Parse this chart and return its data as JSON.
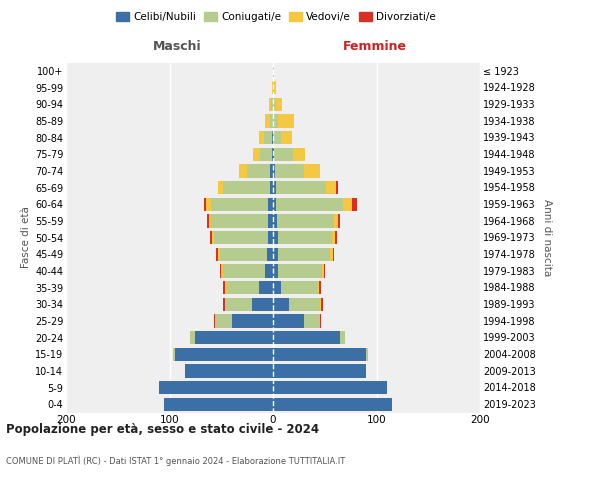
{
  "age_groups": [
    "0-4",
    "5-9",
    "10-14",
    "15-19",
    "20-24",
    "25-29",
    "30-34",
    "35-39",
    "40-44",
    "45-49",
    "50-54",
    "55-59",
    "60-64",
    "65-69",
    "70-74",
    "75-79",
    "80-84",
    "85-89",
    "90-94",
    "95-99",
    "100+"
  ],
  "birth_years": [
    "2019-2023",
    "2014-2018",
    "2009-2013",
    "2004-2008",
    "1999-2003",
    "1994-1998",
    "1989-1993",
    "1984-1988",
    "1979-1983",
    "1974-1978",
    "1969-1973",
    "1964-1968",
    "1959-1963",
    "1954-1958",
    "1949-1953",
    "1944-1948",
    "1939-1943",
    "1934-1938",
    "1929-1933",
    "1924-1928",
    "≤ 1923"
  ],
  "colors": {
    "celibi": "#3c6fa5",
    "coniugati": "#b5cc8e",
    "vedovi": "#f5c842",
    "divorziati": "#d93025"
  },
  "maschi": {
    "celibi": [
      105,
      110,
      85,
      95,
      75,
      40,
      20,
      14,
      8,
      6,
      5,
      5,
      5,
      3,
      3,
      1,
      1,
      0,
      0,
      0,
      0
    ],
    "coniugati": [
      0,
      0,
      0,
      2,
      5,
      15,
      25,
      30,
      40,
      45,
      52,
      55,
      55,
      45,
      22,
      12,
      8,
      3,
      2,
      0,
      0
    ],
    "vedovi": [
      0,
      0,
      0,
      0,
      0,
      1,
      1,
      2,
      2,
      2,
      2,
      2,
      5,
      5,
      8,
      6,
      5,
      5,
      2,
      1,
      0
    ],
    "divorziati": [
      0,
      0,
      0,
      0,
      0,
      1,
      2,
      2,
      1,
      2,
      2,
      2,
      2,
      0,
      0,
      0,
      0,
      0,
      0,
      0,
      0
    ]
  },
  "femmine": {
    "celibi": [
      115,
      110,
      90,
      90,
      65,
      30,
      15,
      8,
      5,
      5,
      5,
      4,
      3,
      3,
      2,
      1,
      0,
      0,
      0,
      0,
      0
    ],
    "coniugati": [
      0,
      0,
      0,
      2,
      5,
      15,
      30,
      35,
      42,
      50,
      52,
      55,
      65,
      48,
      28,
      18,
      8,
      5,
      3,
      1,
      0
    ],
    "vedovi": [
      0,
      0,
      0,
      0,
      0,
      0,
      1,
      1,
      2,
      3,
      3,
      4,
      8,
      10,
      15,
      12,
      10,
      15,
      6,
      2,
      1
    ],
    "divorziati": [
      0,
      0,
      0,
      0,
      0,
      1,
      2,
      2,
      1,
      1,
      2,
      2,
      5,
      2,
      0,
      0,
      0,
      0,
      0,
      0,
      0
    ]
  },
  "xlim": 200,
  "title": "Popolazione per età, sesso e stato civile - 2024",
  "subtitle": "COMUNE DI PLATÌ (RC) - Dati ISTAT 1° gennaio 2024 - Elaborazione TUTTITALIA.IT",
  "ylabel_left": "Fasce di età",
  "ylabel_right": "Anni di nascita",
  "xlabel_maschi": "Maschi",
  "xlabel_femmine": "Femmine",
  "bg_color": "#efefef",
  "legend_labels": [
    "Celibi/Nubili",
    "Coniugati/e",
    "Vedovi/e",
    "Divorziati/e"
  ]
}
